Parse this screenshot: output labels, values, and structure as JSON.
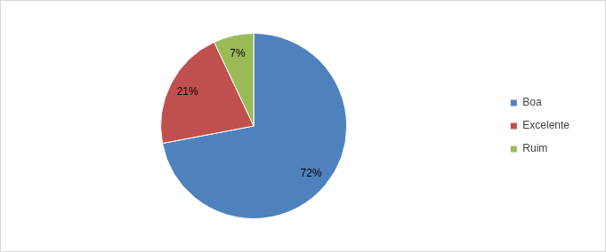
{
  "chart_data": {
    "type": "pie",
    "categories": [
      "Boa",
      "Excelente",
      "Ruim"
    ],
    "values": [
      72,
      21,
      7
    ],
    "value_labels": [
      "72%",
      "21%",
      "7%"
    ],
    "colors": [
      "#4f81bd",
      "#c0504d",
      "#9bbb59"
    ],
    "data_labels": true,
    "legend": "right"
  }
}
